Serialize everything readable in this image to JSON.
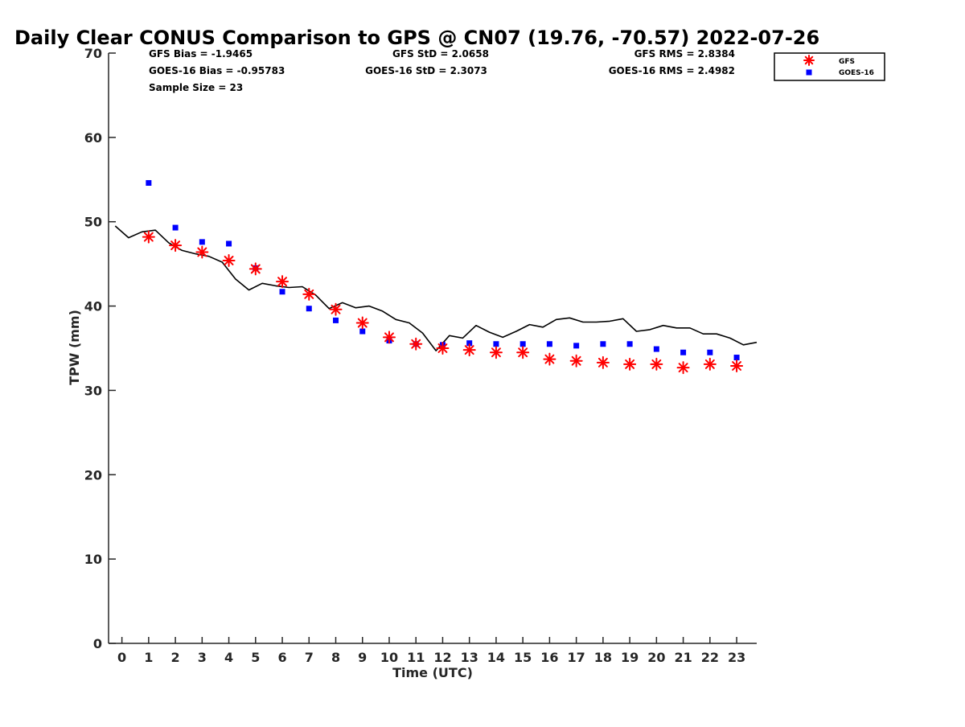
{
  "chart_data": {
    "type": "scatter",
    "title": "Daily Clear CONUS Comparison to GPS @ CN07 (19.76, -70.57) 2022-07-26",
    "xlabel": "Time (UTC)",
    "ylabel": "TPW (mm)",
    "xlim": [
      -0.5,
      23.75
    ],
    "ylim": [
      0,
      70
    ],
    "x_ticks": [
      0,
      1,
      2,
      3,
      4,
      5,
      6,
      7,
      8,
      9,
      10,
      11,
      12,
      13,
      14,
      15,
      16,
      17,
      18,
      19,
      20,
      21,
      22,
      23
    ],
    "y_ticks": [
      0,
      10,
      20,
      30,
      40,
      50,
      60,
      70
    ],
    "grid": false,
    "legend_position": "top-right",
    "stats": {
      "gfs_bias": "GFS Bias = -1.9465",
      "goes_bias": "GOES-16 Bias = -0.95783",
      "sample_size": "Sample Size = 23",
      "gfs_std": "GFS StD = 2.0658",
      "goes_std": "GOES-16 StD = 2.3073",
      "gfs_rms": "GFS RMS = 2.8384",
      "goes_rms": "GOES-16 RMS = 2.4982"
    },
    "series": [
      {
        "name": "GFS",
        "marker": "asterisk",
        "color": "#ff0000",
        "x": [
          1,
          2,
          3,
          4,
          5,
          6,
          7,
          8,
          9,
          10,
          11,
          12,
          13,
          14,
          15,
          16,
          17,
          18,
          19,
          20,
          21,
          22,
          23
        ],
        "y": [
          48.2,
          47.2,
          46.4,
          45.4,
          44.4,
          42.9,
          41.4,
          39.6,
          38.0,
          36.3,
          35.5,
          35.0,
          34.8,
          34.5,
          34.5,
          33.7,
          33.5,
          33.3,
          33.1,
          33.1,
          32.7,
          33.1,
          32.9
        ]
      },
      {
        "name": "GOES-16",
        "marker": "square",
        "color": "#0000ff",
        "x": [
          1,
          2,
          3,
          4,
          5,
          6,
          7,
          8,
          9,
          10,
          11,
          12,
          13,
          14,
          15,
          16,
          17,
          18,
          19,
          20,
          21,
          22,
          23
        ],
        "y": [
          54.6,
          49.3,
          47.6,
          47.4,
          44.5,
          41.7,
          39.7,
          38.3,
          37.0,
          35.9,
          35.5,
          35.4,
          35.6,
          35.5,
          35.5,
          35.5,
          35.3,
          35.5,
          35.5,
          34.9,
          34.5,
          34.5,
          33.9
        ]
      },
      {
        "name": "GPS",
        "marker": "line",
        "color": "#000000",
        "x": [
          -0.25,
          0.25,
          0.75,
          1.25,
          1.75,
          2.25,
          2.75,
          3.25,
          3.75,
          4.25,
          4.75,
          5.25,
          5.75,
          6.25,
          6.75,
          7.25,
          7.75,
          8.25,
          8.75,
          9.25,
          9.75,
          10.25,
          10.75,
          11.25,
          11.75,
          12.25,
          12.75,
          13.25,
          13.75,
          14.25,
          14.75,
          15.25,
          15.75,
          16.25,
          16.75,
          17.25,
          17.75,
          18.25,
          18.75,
          19.25,
          19.75,
          20.25,
          20.75,
          21.25,
          21.75,
          22.25,
          22.75,
          23.25,
          23.75
        ],
        "y": [
          49.5,
          48.1,
          48.8,
          49.0,
          47.5,
          46.6,
          46.2,
          45.9,
          45.2,
          43.2,
          41.9,
          42.7,
          42.4,
          42.2,
          42.3,
          41.3,
          39.7,
          40.4,
          39.8,
          40.0,
          39.4,
          38.4,
          38.0,
          36.8,
          34.7,
          36.5,
          36.2,
          37.7,
          36.9,
          36.3,
          37.0,
          37.8,
          37.5,
          38.4,
          38.6,
          38.1,
          38.1,
          38.2,
          38.5,
          37.0,
          37.2,
          37.7,
          37.4,
          37.4,
          36.7,
          36.7,
          36.2,
          35.4,
          35.7
        ]
      }
    ]
  }
}
